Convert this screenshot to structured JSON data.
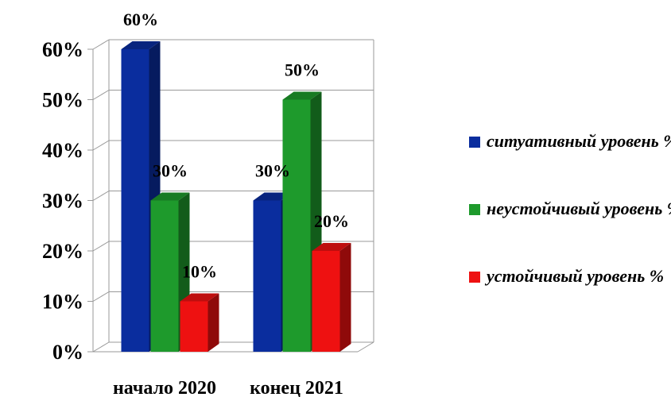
{
  "chart_data": {
    "type": "bar",
    "categories": [
      "начало 2020",
      "конец 2021"
    ],
    "series": [
      {
        "name": "ситуативный уровень %",
        "color": "#0a2d9e",
        "values": [
          60,
          30
        ],
        "value_labels": [
          "60%",
          "30%"
        ]
      },
      {
        "name": "неустойчивый уровень %",
        "color": "#1e9a2c",
        "values": [
          30,
          50
        ],
        "value_labels": [
          "30%",
          "50%"
        ]
      },
      {
        "name": "устойчивый уровень %",
        "color": "#ee1111",
        "values": [
          10,
          20
        ],
        "value_labels": [
          "10%",
          "20%"
        ]
      }
    ],
    "ylim": [
      0,
      60
    ],
    "yticks": [
      {
        "value": 0,
        "label": "0%"
      },
      {
        "value": 10,
        "label": "10%"
      },
      {
        "value": 20,
        "label": "20%"
      },
      {
        "value": 30,
        "label": "30%"
      },
      {
        "value": 40,
        "label": "40%"
      },
      {
        "value": 50,
        "label": "50%"
      },
      {
        "value": 60,
        "label": "60%"
      }
    ],
    "grid": true,
    "legend": "right"
  }
}
